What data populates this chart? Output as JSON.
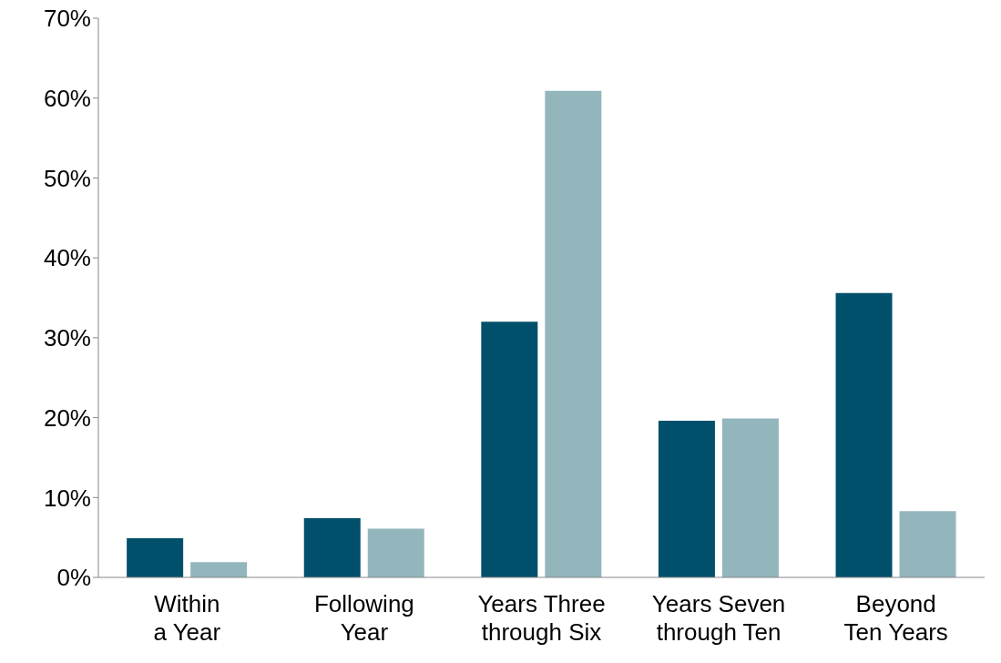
{
  "chart_data": {
    "type": "bar",
    "categories": [
      "Within a Year",
      "Following Year",
      "Years Three through Six",
      "Years Seven through Ten",
      "Beyond Ten Years"
    ],
    "series": [
      {
        "color": "#00506b",
        "values": [
          4.9,
          7.4,
          32.0,
          19.6,
          35.6
        ]
      },
      {
        "color": "#92b6bb",
        "values": [
          1.9,
          6.1,
          60.9,
          19.9,
          8.3
        ]
      }
    ],
    "ylim": [
      0,
      70
    ],
    "yticks": [
      {
        "value": 0,
        "label": "0%"
      },
      {
        "value": 10,
        "label": "10%"
      },
      {
        "value": 20,
        "label": "20%"
      },
      {
        "value": 30,
        "label": "30%"
      },
      {
        "value": 40,
        "label": "40%"
      },
      {
        "value": 50,
        "label": "50%"
      },
      {
        "value": 60,
        "label": "60%"
      },
      {
        "value": 70,
        "label": "70%"
      }
    ],
    "grid": false,
    "legend": false
  }
}
